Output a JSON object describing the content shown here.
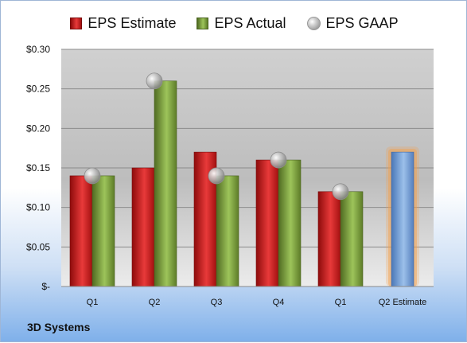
{
  "legend": {
    "estimate": "EPS Estimate",
    "actual": "EPS Actual",
    "gaap": "EPS GAAP"
  },
  "company": "3D Systems",
  "colors": {
    "estimate": "#cc2020",
    "actual": "#7fa23f",
    "gaap": "#a8a8a8",
    "forecast": "#6f9ad2",
    "forecast_glow": "#f5a04a"
  },
  "chart_data": {
    "type": "bar",
    "categories": [
      "Q1",
      "Q2",
      "Q3",
      "Q4",
      "Q1",
      "Q2 Estimate"
    ],
    "y_tick_labels": [
      "$-",
      "$0.05",
      "$0.10",
      "$0.15",
      "$0.20",
      "$0.25",
      "$0.30"
    ],
    "ylim": [
      0,
      0.3
    ],
    "y_step": 0.05,
    "grid": true,
    "legend_position": "top",
    "series": [
      {
        "name": "EPS Estimate",
        "values": [
          0.14,
          0.15,
          0.17,
          0.16,
          0.12,
          null
        ]
      },
      {
        "name": "EPS Actual",
        "values": [
          0.14,
          0.26,
          0.14,
          0.16,
          0.12,
          null
        ]
      },
      {
        "name": "EPS GAAP",
        "values": [
          0.14,
          0.26,
          0.14,
          0.16,
          0.12,
          null
        ]
      }
    ],
    "forecast": {
      "category": "Q2 Estimate",
      "value": 0.17
    }
  }
}
